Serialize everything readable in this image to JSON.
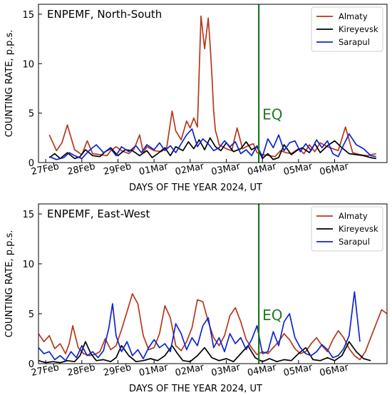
{
  "chart_data": [
    {
      "type": "line",
      "title": "ENPEMF, North-South",
      "xlabel": "DAYS OF THE YEAR 2024, UT",
      "ylabel": "COUNTING RATE, p.p.s.",
      "xlim": [
        0,
        9.65
      ],
      "ylim": [
        0,
        16
      ],
      "yticks": [
        0,
        5,
        10,
        15
      ],
      "xtick_labels": [
        "27Feb",
        "28Feb",
        "29Feb",
        "01Mar",
        "02Mar",
        "03Mar",
        "04Mar",
        "05Mar",
        "06Mar"
      ],
      "event": {
        "label": "EQ",
        "x": 6.1,
        "color": "#1f7a1f"
      },
      "legend_position": "top-right",
      "grid": false,
      "series": [
        {
          "name": "Almaty",
          "color": "#b5381a",
          "x": [
            0.3,
            0.5,
            0.65,
            0.8,
            1.0,
            1.2,
            1.35,
            1.5,
            1.7,
            1.9,
            2.0,
            2.15,
            2.3,
            2.5,
            2.65,
            2.8,
            2.9,
            3.0,
            3.2,
            3.4,
            3.55,
            3.7,
            3.8,
            3.95,
            4.1,
            4.2,
            4.3,
            4.4,
            4.5,
            4.6,
            4.7,
            4.75,
            4.8,
            4.85,
            4.9,
            4.95,
            5.0,
            5.1,
            5.2,
            5.35,
            5.5,
            5.65,
            5.8,
            5.95,
            6.05,
            6.2,
            6.4,
            6.55,
            6.7,
            6.85,
            7.0,
            7.2,
            7.35,
            7.5,
            7.65,
            7.8,
            8.0,
            8.15,
            8.3,
            8.5,
            8.7,
            8.9,
            9.1,
            9.35
          ],
          "y": [
            2.8,
            1.2,
            2.0,
            3.8,
            1.3,
            0.8,
            2.2,
            0.9,
            0.8,
            0.7,
            1.2,
            1.6,
            1.2,
            0.9,
            1.4,
            2.8,
            1.0,
            1.6,
            1.2,
            1.1,
            1.5,
            5.2,
            3.2,
            2.3,
            4.2,
            3.5,
            4.5,
            3.6,
            14.8,
            11.5,
            14.6,
            12.0,
            9.0,
            5.2,
            3.2,
            2.6,
            1.8,
            1.6,
            1.4,
            1.2,
            3.5,
            1.4,
            1.7,
            1.9,
            1.0,
            0.8,
            0.7,
            0.6,
            1.2,
            1.0,
            0.9,
            1.4,
            0.9,
            1.8,
            1.1,
            2.0,
            1.6,
            1.4,
            1.2,
            3.6,
            1.0,
            0.8,
            0.7,
            0.9
          ]
        },
        {
          "name": "Kireyevsk",
          "color": "#000000",
          "x": [
            0.3,
            0.45,
            0.6,
            0.8,
            1.0,
            1.15,
            1.3,
            1.5,
            1.7,
            1.85,
            2.0,
            2.2,
            2.4,
            2.6,
            2.8,
            3.0,
            3.15,
            3.3,
            3.5,
            3.65,
            3.8,
            4.0,
            4.15,
            4.3,
            4.45,
            4.6,
            4.75,
            4.9,
            5.05,
            5.2,
            5.4,
            5.6,
            5.75,
            5.9,
            6.05,
            6.2,
            6.35,
            6.5,
            6.65,
            6.8,
            7.0,
            7.15,
            7.3,
            7.5,
            7.65,
            7.8,
            8.0,
            8.2,
            8.4,
            8.6,
            8.8,
            9.0,
            9.2,
            9.35
          ],
          "y": [
            0.5,
            0.9,
            0.4,
            1.0,
            0.4,
            0.6,
            1.3,
            0.7,
            0.6,
            1.1,
            1.5,
            0.7,
            1.3,
            1.2,
            0.7,
            1.2,
            0.5,
            0.9,
            1.5,
            0.7,
            1.6,
            1.2,
            2.1,
            1.4,
            2.3,
            1.3,
            2.5,
            1.6,
            1.2,
            2.0,
            1.1,
            1.4,
            2.1,
            1.3,
            1.6,
            0.4,
            0.9,
            0.3,
            0.5,
            1.8,
            0.8,
            1.2,
            1.5,
            1.0,
            1.9,
            1.0,
            1.7,
            2.2,
            1.5,
            0.9,
            0.8,
            0.7,
            0.5,
            0.4
          ]
        },
        {
          "name": "Sarapul",
          "color": "#1024d0",
          "x": [
            0.3,
            0.5,
            0.7,
            0.85,
            1.0,
            1.2,
            1.4,
            1.6,
            1.8,
            2.0,
            2.15,
            2.3,
            2.5,
            2.7,
            2.85,
            3.0,
            3.2,
            3.35,
            3.5,
            3.65,
            3.8,
            3.95,
            4.1,
            4.25,
            4.4,
            4.55,
            4.7,
            4.85,
            5.0,
            5.15,
            5.3,
            5.45,
            5.6,
            5.75,
            5.9,
            6.05,
            6.2,
            6.35,
            6.5,
            6.65,
            6.8,
            6.95,
            7.1,
            7.25,
            7.4,
            7.55,
            7.7,
            7.85,
            8.0,
            8.15,
            8.3,
            8.45,
            8.6,
            8.8,
            9.0,
            9.2,
            9.35
          ],
          "y": [
            0.6,
            0.3,
            0.5,
            1.0,
            0.7,
            0.4,
            1.2,
            1.8,
            1.0,
            1.4,
            0.7,
            1.6,
            1.1,
            1.7,
            1.0,
            1.8,
            1.3,
            2.0,
            1.2,
            1.7,
            1.0,
            1.9,
            2.8,
            3.4,
            1.6,
            2.4,
            1.9,
            1.2,
            1.5,
            2.2,
            1.6,
            2.1,
            0.9,
            1.3,
            0.7,
            1.7,
            0.6,
            2.4,
            1.5,
            2.8,
            1.2,
            2.0,
            2.2,
            1.1,
            1.9,
            1.2,
            2.3,
            1.5,
            2.2,
            0.9,
            0.6,
            1.8,
            2.9,
            1.8,
            1.4,
            0.7,
            0.6
          ]
        }
      ]
    },
    {
      "type": "line",
      "title": "ENPEMF, East-West",
      "xlabel": "DAYS OF THE YEAR 2024, UT",
      "ylabel": "COUNTING RATE, p.p.s.",
      "xlim": [
        0,
        9.65
      ],
      "ylim": [
        0,
        16
      ],
      "yticks": [
        0,
        5,
        10,
        15
      ],
      "xtick_labels": [
        "27Feb",
        "28Feb",
        "29Feb",
        "01Mar",
        "02Mar",
        "03Mar",
        "04Mar",
        "05Mar",
        "06Mar"
      ],
      "event": {
        "label": "EQ",
        "x": 6.1,
        "color": "#1f7a1f"
      },
      "legend_position": "top-right",
      "grid": false,
      "series": [
        {
          "name": "Almaty",
          "color": "#b5381a",
          "x": [
            0.0,
            0.15,
            0.3,
            0.45,
            0.6,
            0.75,
            0.85,
            0.95,
            1.1,
            1.25,
            1.4,
            1.55,
            1.7,
            1.85,
            2.0,
            2.15,
            2.3,
            2.45,
            2.6,
            2.75,
            2.9,
            3.05,
            3.2,
            3.35,
            3.5,
            3.65,
            3.8,
            3.95,
            4.1,
            4.25,
            4.4,
            4.55,
            4.7,
            4.85,
            5.0,
            5.15,
            5.3,
            5.45,
            5.6,
            5.75,
            5.9,
            6.05,
            6.2,
            6.35,
            6.5,
            6.65,
            6.8,
            6.95,
            7.1,
            7.25,
            7.4,
            7.55,
            7.7,
            7.85,
            8.0,
            8.15,
            8.3,
            8.45,
            8.6,
            8.75,
            8.9,
            9.05,
            9.2,
            9.35,
            9.5,
            9.65
          ],
          "y": [
            3.0,
            2.2,
            2.8,
            1.5,
            2.0,
            1.0,
            2.0,
            3.8,
            1.6,
            1.0,
            0.8,
            0.9,
            1.2,
            2.5,
            1.4,
            1.8,
            3.4,
            5.2,
            7.0,
            6.0,
            2.8,
            1.4,
            1.6,
            3.0,
            5.8,
            4.6,
            1.8,
            1.3,
            2.2,
            3.6,
            6.4,
            6.2,
            4.2,
            2.6,
            1.8,
            2.8,
            4.8,
            5.6,
            4.2,
            2.4,
            1.6,
            0.9,
            1.2,
            1.0,
            1.6,
            2.2,
            3.0,
            2.4,
            1.5,
            1.0,
            1.2,
            2.0,
            2.6,
            1.8,
            1.2,
            2.4,
            3.3,
            2.6,
            1.5,
            0.8,
            0.4,
            1.2,
            2.6,
            4.0,
            5.4,
            5.0
          ]
        },
        {
          "name": "Kireyevsk",
          "color": "#000000",
          "x": [
            0.0,
            0.2,
            0.4,
            0.6,
            0.8,
            1.0,
            1.15,
            1.3,
            1.45,
            1.6,
            1.8,
            2.0,
            2.15,
            2.3,
            2.5,
            2.7,
            2.9,
            3.1,
            3.3,
            3.5,
            3.7,
            3.85,
            4.0,
            4.2,
            4.4,
            4.6,
            4.8,
            5.0,
            5.2,
            5.4,
            5.6,
            5.8,
            6.0,
            6.2,
            6.4,
            6.6,
            6.8,
            7.0,
            7.2,
            7.4,
            7.6,
            7.8,
            8.0,
            8.2,
            8.4,
            8.6,
            8.8,
            9.0,
            9.2
          ],
          "y": [
            0.3,
            0.1,
            0.2,
            0.1,
            0.3,
            0.2,
            0.8,
            2.2,
            1.0,
            0.3,
            0.4,
            0.2,
            0.6,
            1.8,
            0.8,
            0.2,
            0.3,
            0.5,
            0.3,
            0.8,
            1.8,
            1.0,
            0.3,
            0.2,
            0.8,
            1.6,
            0.6,
            0.3,
            0.5,
            0.2,
            1.0,
            1.8,
            0.6,
            0.2,
            0.5,
            0.2,
            0.4,
            0.3,
            1.0,
            1.6,
            0.4,
            0.3,
            0.6,
            0.3,
            0.8,
            2.2,
            1.2,
            0.5,
            0.3
          ]
        },
        {
          "name": "Sarapul",
          "color": "#1024d0",
          "x": [
            0.0,
            0.15,
            0.3,
            0.45,
            0.6,
            0.75,
            0.9,
            1.05,
            1.2,
            1.35,
            1.5,
            1.65,
            1.8,
            1.95,
            2.05,
            2.15,
            2.3,
            2.45,
            2.6,
            2.75,
            2.9,
            3.05,
            3.2,
            3.35,
            3.5,
            3.65,
            3.8,
            3.95,
            4.1,
            4.25,
            4.4,
            4.55,
            4.7,
            4.85,
            5.0,
            5.15,
            5.3,
            5.45,
            5.6,
            5.75,
            5.9,
            6.05,
            6.2,
            6.35,
            6.5,
            6.65,
            6.8,
            6.95,
            7.1,
            7.25,
            7.4,
            7.55,
            7.7,
            7.85,
            8.0,
            8.15,
            8.3,
            8.45,
            8.6,
            8.75,
            8.9
          ],
          "y": [
            1.6,
            1.0,
            1.2,
            0.4,
            0.8,
            0.3,
            1.2,
            0.6,
            1.8,
            0.8,
            1.2,
            0.6,
            1.3,
            3.6,
            6.0,
            2.8,
            1.2,
            2.2,
            0.8,
            1.4,
            0.5,
            1.6,
            2.4,
            1.6,
            2.0,
            1.2,
            4.0,
            3.0,
            1.4,
            2.6,
            1.8,
            3.8,
            4.6,
            1.6,
            2.6,
            1.2,
            3.0,
            2.0,
            2.6,
            1.4,
            2.4,
            3.8,
            1.0,
            1.2,
            3.2,
            1.8,
            4.2,
            5.0,
            2.6,
            1.6,
            1.0,
            0.8,
            1.2,
            1.9,
            1.4,
            0.6,
            0.8,
            1.5,
            2.8,
            7.2,
            2.2
          ]
        }
      ]
    }
  ]
}
